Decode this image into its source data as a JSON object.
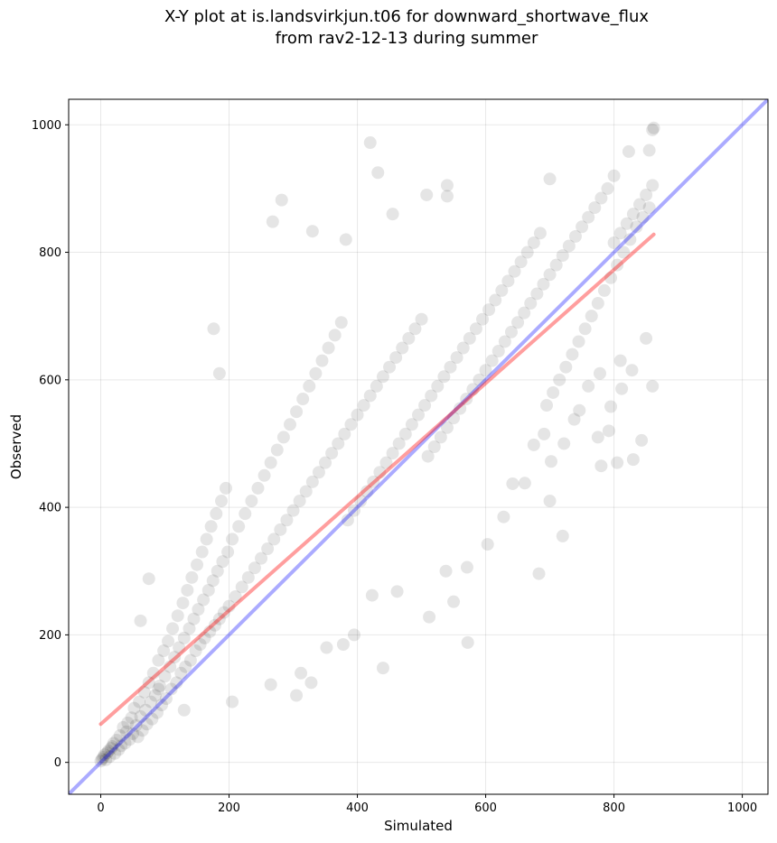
{
  "chart_data": {
    "type": "scatter",
    "title": "X-Y plot at is.landsvirkjun.t06 for downward_shortwave_flux",
    "subtitle": "from rav2-12-13 during summer",
    "xlabel": "Simulated",
    "ylabel": "Observed",
    "xlim": [
      -50,
      1040
    ],
    "ylim": [
      -50,
      1040
    ],
    "xticks": [
      0,
      200,
      400,
      600,
      800,
      1000
    ],
    "yticks": [
      0,
      200,
      400,
      600,
      800,
      1000
    ],
    "grid": true,
    "legend": "none",
    "colors": {
      "points": "#000000",
      "one_to_one": "#0000ff",
      "fit": "#ff0000"
    },
    "one_to_one_line": {
      "slope": 1,
      "intercept": 0
    },
    "fit_line": {
      "x": [
        0,
        862
      ],
      "y": [
        60,
        828
      ]
    },
    "series": [
      {
        "values": [
          [
            0,
            2
          ],
          [
            2,
            5
          ],
          [
            4,
            8
          ],
          [
            6,
            12
          ],
          [
            8,
            4
          ],
          [
            10,
            15
          ],
          [
            12,
            18
          ],
          [
            14,
            9
          ],
          [
            16,
            22
          ],
          [
            18,
            25
          ],
          [
            20,
            30
          ],
          [
            22,
            14
          ],
          [
            25,
            35
          ],
          [
            28,
            20
          ],
          [
            30,
            42
          ],
          [
            32,
            26
          ],
          [
            35,
            55
          ],
          [
            38,
            30
          ],
          [
            40,
            48
          ],
          [
            42,
            62
          ],
          [
            45,
            36
          ],
          [
            48,
            70
          ],
          [
            50,
            45
          ],
          [
            52,
            85
          ],
          [
            55,
            58
          ],
          [
            58,
            40
          ],
          [
            60,
            95
          ],
          [
            62,
            72
          ],
          [
            65,
            50
          ],
          [
            68,
            110
          ],
          [
            70,
            82
          ],
          [
            72,
            60
          ],
          [
            75,
            125
          ],
          [
            78,
            95
          ],
          [
            80,
            68
          ],
          [
            82,
            140
          ],
          [
            85,
            105
          ],
          [
            88,
            78
          ],
          [
            90,
            160
          ],
          [
            92,
            120
          ],
          [
            95,
            90
          ],
          [
            98,
            175
          ],
          [
            100,
            135
          ],
          [
            102,
            100
          ],
          [
            105,
            190
          ],
          [
            108,
            150
          ],
          [
            110,
            115
          ],
          [
            112,
            210
          ],
          [
            115,
            165
          ],
          [
            118,
            125
          ],
          [
            120,
            230
          ],
          [
            122,
            180
          ],
          [
            125,
            140
          ],
          [
            128,
            250
          ],
          [
            130,
            195
          ],
          [
            132,
            150
          ],
          [
            135,
            270
          ],
          [
            138,
            210
          ],
          [
            140,
            160
          ],
          [
            142,
            290
          ],
          [
            145,
            225
          ],
          [
            148,
            175
          ],
          [
            150,
            310
          ],
          [
            152,
            240
          ],
          [
            155,
            185
          ],
          [
            158,
            330
          ],
          [
            160,
            255
          ],
          [
            162,
            195
          ],
          [
            165,
            350
          ],
          [
            168,
            270
          ],
          [
            170,
            205
          ],
          [
            172,
            370
          ],
          [
            175,
            285
          ],
          [
            178,
            215
          ],
          [
            180,
            390
          ],
          [
            182,
            300
          ],
          [
            185,
            225
          ],
          [
            188,
            410
          ],
          [
            190,
            315
          ],
          [
            192,
            235
          ],
          [
            195,
            430
          ],
          [
            198,
            330
          ],
          [
            200,
            245
          ],
          [
            205,
            350
          ],
          [
            210,
            260
          ],
          [
            215,
            370
          ],
          [
            220,
            275
          ],
          [
            225,
            390
          ],
          [
            230,
            290
          ],
          [
            235,
            410
          ],
          [
            240,
            305
          ],
          [
            245,
            430
          ],
          [
            250,
            320
          ],
          [
            255,
            450
          ],
          [
            260,
            335
          ],
          [
            265,
            470
          ],
          [
            270,
            350
          ],
          [
            275,
            490
          ],
          [
            280,
            365
          ],
          [
            285,
            510
          ],
          [
            290,
            380
          ],
          [
            295,
            530
          ],
          [
            300,
            395
          ],
          [
            305,
            550
          ],
          [
            310,
            410
          ],
          [
            315,
            570
          ],
          [
            320,
            425
          ],
          [
            325,
            590
          ],
          [
            330,
            440
          ],
          [
            335,
            610
          ],
          [
            340,
            455
          ],
          [
            345,
            630
          ],
          [
            350,
            470
          ],
          [
            355,
            650
          ],
          [
            360,
            485
          ],
          [
            365,
            670
          ],
          [
            370,
            500
          ],
          [
            375,
            690
          ],
          [
            380,
            515
          ],
          [
            385,
            380
          ],
          [
            390,
            530
          ],
          [
            395,
            395
          ],
          [
            400,
            545
          ],
          [
            405,
            410
          ],
          [
            410,
            560
          ],
          [
            415,
            425
          ],
          [
            420,
            575
          ],
          [
            425,
            440
          ],
          [
            430,
            590
          ],
          [
            435,
            455
          ],
          [
            440,
            605
          ],
          [
            445,
            470
          ],
          [
            450,
            620
          ],
          [
            455,
            485
          ],
          [
            460,
            635
          ],
          [
            465,
            500
          ],
          [
            470,
            650
          ],
          [
            475,
            515
          ],
          [
            480,
            665
          ],
          [
            485,
            530
          ],
          [
            490,
            680
          ],
          [
            495,
            545
          ],
          [
            500,
            695
          ],
          [
            505,
            560
          ],
          [
            510,
            480
          ],
          [
            515,
            575
          ],
          [
            520,
            495
          ],
          [
            525,
            590
          ],
          [
            530,
            510
          ],
          [
            535,
            605
          ],
          [
            540,
            525
          ],
          [
            545,
            620
          ],
          [
            550,
            540
          ],
          [
            555,
            635
          ],
          [
            560,
            555
          ],
          [
            565,
            650
          ],
          [
            570,
            570
          ],
          [
            575,
            665
          ],
          [
            580,
            585
          ],
          [
            585,
            680
          ],
          [
            590,
            600
          ],
          [
            595,
            695
          ],
          [
            600,
            615
          ],
          [
            605,
            710
          ],
          [
            610,
            630
          ],
          [
            615,
            725
          ],
          [
            620,
            645
          ],
          [
            625,
            740
          ],
          [
            630,
            660
          ],
          [
            635,
            755
          ],
          [
            640,
            675
          ],
          [
            645,
            770
          ],
          [
            650,
            690
          ],
          [
            655,
            785
          ],
          [
            660,
            705
          ],
          [
            665,
            800
          ],
          [
            670,
            720
          ],
          [
            675,
            815
          ],
          [
            680,
            735
          ],
          [
            685,
            830
          ],
          [
            690,
            750
          ],
          [
            695,
            560
          ],
          [
            700,
            765
          ],
          [
            705,
            580
          ],
          [
            710,
            780
          ],
          [
            715,
            600
          ],
          [
            720,
            795
          ],
          [
            725,
            620
          ],
          [
            730,
            810
          ],
          [
            735,
            640
          ],
          [
            740,
            825
          ],
          [
            745,
            660
          ],
          [
            750,
            840
          ],
          [
            755,
            680
          ],
          [
            760,
            855
          ],
          [
            765,
            700
          ],
          [
            770,
            870
          ],
          [
            775,
            720
          ],
          [
            780,
            885
          ],
          [
            785,
            740
          ],
          [
            790,
            900
          ],
          [
            795,
            760
          ],
          [
            800,
            815
          ],
          [
            805,
            780
          ],
          [
            810,
            830
          ],
          [
            815,
            800
          ],
          [
            820,
            845
          ],
          [
            825,
            820
          ],
          [
            830,
            860
          ],
          [
            835,
            840
          ],
          [
            840,
            875
          ],
          [
            845,
            855
          ],
          [
            850,
            890
          ],
          [
            855,
            870
          ],
          [
            860,
            905
          ],
          [
            862,
            995
          ],
          [
            420,
            972
          ],
          [
            432,
            925
          ],
          [
            508,
            890
          ],
          [
            540,
            905
          ],
          [
            455,
            860
          ],
          [
            282,
            882
          ],
          [
            268,
            848
          ],
          [
            330,
            833
          ],
          [
            382,
            820
          ],
          [
            176,
            680
          ],
          [
            185,
            610
          ],
          [
            540,
            888
          ],
          [
            700,
            915
          ],
          [
            800,
            920
          ],
          [
            823,
            958
          ],
          [
            855,
            960
          ],
          [
            860,
            992
          ],
          [
            440,
            148
          ],
          [
            572,
            188
          ],
          [
            550,
            252
          ],
          [
            683,
            296
          ],
          [
            700,
            410
          ],
          [
            720,
            355
          ],
          [
            775,
            510
          ],
          [
            792,
            520
          ],
          [
            780,
            465
          ],
          [
            810,
            630
          ],
          [
            830,
            475
          ],
          [
            850,
            665
          ],
          [
            860,
            590
          ],
          [
            843,
            505
          ],
          [
            805,
            470
          ],
          [
            75,
            288
          ],
          [
            62,
            222
          ],
          [
            90,
            115
          ],
          [
            130,
            82
          ],
          [
            205,
            95
          ],
          [
            265,
            122
          ],
          [
            305,
            105
          ],
          [
            312,
            140
          ],
          [
            328,
            125
          ],
          [
            352,
            180
          ],
          [
            378,
            185
          ],
          [
            395,
            200
          ],
          [
            423,
            262
          ],
          [
            462,
            268
          ],
          [
            512,
            228
          ],
          [
            538,
            300
          ],
          [
            571,
            306
          ],
          [
            603,
            342
          ],
          [
            628,
            385
          ],
          [
            642,
            437
          ],
          [
            661,
            438
          ],
          [
            675,
            498
          ],
          [
            691,
            515
          ],
          [
            702,
            472
          ],
          [
            722,
            500
          ],
          [
            738,
            538
          ],
          [
            746,
            552
          ],
          [
            760,
            590
          ],
          [
            778,
            610
          ],
          [
            795,
            558
          ],
          [
            812,
            586
          ],
          [
            828,
            615
          ]
        ]
      }
    ]
  }
}
